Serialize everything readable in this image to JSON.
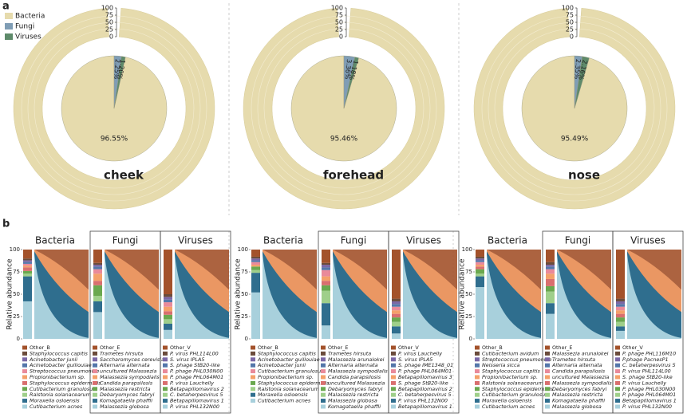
{
  "figure": {
    "panel_labels": [
      "a",
      "b"
    ]
  },
  "chart_data": [
    {
      "type": "pie",
      "title": "cheek",
      "categories": [
        "Bacteria",
        "Fungi",
        "Viruses"
      ],
      "colors": [
        "#e6dbad",
        "#7f9db5",
        "#5e8a6a"
      ],
      "values": [
        96.55,
        2.25,
        1.2
      ],
      "value_labels": [
        "96.55%",
        "2.25%",
        "1.20%"
      ],
      "rlim": [
        0,
        100
      ],
      "rticks": [
        0,
        25,
        50,
        75,
        100
      ],
      "legend": "upper left"
    },
    {
      "type": "pie",
      "title": "forehead",
      "categories": [
        "Bacteria",
        "Fungi",
        "Viruses"
      ],
      "colors": [
        "#e6dbad",
        "#7f9db5",
        "#5e8a6a"
      ],
      "values": [
        95.46,
        3.36,
        1.18
      ],
      "value_labels": [
        "95.46%",
        "3.36%",
        "1.18%"
      ],
      "rlim": [
        0,
        100
      ],
      "rticks": [
        0,
        25,
        50,
        75,
        100
      ]
    },
    {
      "type": "pie",
      "title": "nose",
      "categories": [
        "Bacteria",
        "Fungi",
        "Viruses"
      ],
      "colors": [
        "#e6dbad",
        "#7f9db5",
        "#5e8a6a"
      ],
      "values": [
        95.49,
        2.35,
        2.16
      ],
      "value_labels": [
        "95.49%",
        "2.35%",
        "2.16%"
      ],
      "rlim": [
        0,
        100
      ],
      "rticks": [
        0,
        25,
        50,
        75,
        100
      ]
    },
    {
      "type": "stacked_area",
      "title": "Bacteria",
      "ylabel": "Relative abundance",
      "ylim": [
        0,
        100
      ],
      "yticks": [
        0,
        25,
        50,
        75,
        100
      ],
      "series": [
        {
          "name": "Other_B",
          "color": "#a3522b",
          "values": [
            10
          ]
        },
        {
          "name": "Staphylococcus capitis",
          "color": "#6b4c3b",
          "values": [
            2
          ]
        },
        {
          "name": "Acinetobacter junii",
          "color": "#7b68a6",
          "values": [
            2
          ]
        },
        {
          "name": "Acinetobacter guillouiae",
          "color": "#5577aa",
          "values": [
            2
          ]
        },
        {
          "name": "Streptococcus pneumoniae",
          "color": "#e98a9a",
          "values": [
            2
          ]
        },
        {
          "name": "Propionibacterium sp.",
          "color": "#f4a06a",
          "values": [
            2
          ]
        },
        {
          "name": "Staphylococcus epidermidis",
          "color": "#d96f6f",
          "values": [
            4
          ]
        },
        {
          "name": "Cutibacterium granulosum",
          "color": "#6aa84f",
          "values": [
            3
          ]
        },
        {
          "name": "Ralstonia solanacearum",
          "color": "#9fcf8a",
          "values": [
            3
          ]
        },
        {
          "name": "Moraxella osloensis",
          "color": "#2f6e8e",
          "values": [
            28
          ]
        },
        {
          "name": "Cutibacterium acnes",
          "color": "#a8d0dc",
          "values": [
            42
          ]
        }
      ]
    },
    {
      "type": "stacked_area",
      "title": "Fungi",
      "series": [
        {
          "name": "Other_E",
          "color": "#a3522b",
          "values": [
            15
          ]
        },
        {
          "name": "Trametes hirsuta",
          "color": "#6b4c3b",
          "values": [
            2
          ]
        },
        {
          "name": "Saccharomyces cerevisiae",
          "color": "#7b68a6",
          "values": [
            2
          ]
        },
        {
          "name": "Alternaria alternata",
          "color": "#5577aa",
          "values": [
            3
          ]
        },
        {
          "name": "uncultured Malassezia",
          "color": "#e98a9a",
          "values": [
            5
          ]
        },
        {
          "name": "Malassezia sympodialis",
          "color": "#f4a06a",
          "values": [
            8
          ]
        },
        {
          "name": "Candida parapsilosis",
          "color": "#d96f6f",
          "values": [
            5
          ]
        },
        {
          "name": "Malassezia restricta",
          "color": "#6aa84f",
          "values": [
            12
          ]
        },
        {
          "name": "Debaryomyces fabryi",
          "color": "#9fcf8a",
          "values": [
            6
          ]
        },
        {
          "name": "Komagataella phaffii",
          "color": "#2f6e8e",
          "values": [
            12
          ]
        },
        {
          "name": "Malassezia globosa",
          "color": "#a8d0dc",
          "values": [
            30
          ]
        }
      ]
    },
    {
      "type": "stacked_area",
      "title": "Viruses",
      "series": [
        {
          "name": "Other_V",
          "color": "#a3522b",
          "values": [
            50
          ]
        },
        {
          "name": "P. virus PHL114L00",
          "color": "#6b4c3b",
          "values": [
            3
          ]
        },
        {
          "name": "S. virus IPLA5",
          "color": "#7b68a6",
          "values": [
            3
          ]
        },
        {
          "name": "S. phage StB20-like",
          "color": "#5577aa",
          "values": [
            3
          ]
        },
        {
          "name": "P. phage PHL030N00",
          "color": "#e98a9a",
          "values": [
            5
          ]
        },
        {
          "name": "P. phage PHL064M01",
          "color": "#f4a06a",
          "values": [
            5
          ]
        },
        {
          "name": "P. virus Lauchelly",
          "color": "#d96f6f",
          "values": [
            4
          ]
        },
        {
          "name": "Betapapillomavirus 2",
          "color": "#6aa84f",
          "values": [
            5
          ]
        },
        {
          "name": "C. betaherpesvirus 5",
          "color": "#9fcf8a",
          "values": [
            5
          ]
        },
        {
          "name": "Betapapillomavirus 1",
          "color": "#2f6e8e",
          "values": [
            7
          ]
        },
        {
          "name": "P. virus PHL132N00",
          "color": "#a8d0dc",
          "values": [
            10
          ]
        }
      ]
    },
    {
      "type": "stacked_area",
      "title": "Bacteria",
      "ylabel": "Relative abundance",
      "ylim": [
        0,
        100
      ],
      "yticks": [
        0,
        25,
        50,
        75,
        100
      ],
      "series": [
        {
          "name": "Other_B",
          "color": "#a3522b",
          "values": [
            8
          ]
        },
        {
          "name": "Staphylococcus capitis",
          "color": "#6b4c3b",
          "values": [
            2
          ]
        },
        {
          "name": "Acinetobacter guillouiae",
          "color": "#7b68a6",
          "values": [
            2
          ]
        },
        {
          "name": "Acinetobacter junii",
          "color": "#5577aa",
          "values": [
            2
          ]
        },
        {
          "name": "Cutibacterium granulosum",
          "color": "#e98a9a",
          "values": [
            3
          ]
        },
        {
          "name": "Propionibacterium sp.",
          "color": "#f4a06a",
          "values": [
            2
          ]
        },
        {
          "name": "Staphylococcus epidermidis",
          "color": "#6aa84f",
          "values": [
            4
          ]
        },
        {
          "name": "Ralstonia solanacearum",
          "color": "#9fcf8a",
          "values": [
            3
          ]
        },
        {
          "name": "Moraxella osloensis",
          "color": "#2f6e8e",
          "values": [
            22
          ]
        },
        {
          "name": "Cutibacterium acnes",
          "color": "#a8d0dc",
          "values": [
            52
          ]
        }
      ]
    },
    {
      "type": "stacked_area",
      "title": "Fungi",
      "series": [
        {
          "name": "Other_E",
          "color": "#a3522b",
          "values": [
            15
          ]
        },
        {
          "name": "Trametes hirsuta",
          "color": "#6b4c3b",
          "values": [
            2
          ]
        },
        {
          "name": "Malassezia arunalokei",
          "color": "#7b68a6",
          "values": [
            3
          ]
        },
        {
          "name": "Alternaria alternata",
          "color": "#5577aa",
          "values": [
            3
          ]
        },
        {
          "name": "Malassezia sympodialis",
          "color": "#e98a9a",
          "values": [
            7
          ]
        },
        {
          "name": "Candida parapsilosis",
          "color": "#f4a06a",
          "values": [
            5
          ]
        },
        {
          "name": "uncultured Malassezia",
          "color": "#d96f6f",
          "values": [
            5
          ]
        },
        {
          "name": "Debaryomyces fabryi",
          "color": "#6aa84f",
          "values": [
            6
          ]
        },
        {
          "name": "Malassezia restricta",
          "color": "#9fcf8a",
          "values": [
            14
          ]
        },
        {
          "name": "Malassezia globosa",
          "color": "#2f6e8e",
          "values": [
            25
          ]
        },
        {
          "name": "Komagataella phaffii",
          "color": "#a8d0dc",
          "values": [
            15
          ]
        }
      ]
    },
    {
      "type": "stacked_area",
      "title": "Viruses",
      "series": [
        {
          "name": "Other_V",
          "color": "#a3522b",
          "values": [
            55
          ]
        },
        {
          "name": "P. virus Lauchelly",
          "color": "#6b4c3b",
          "values": [
            3
          ]
        },
        {
          "name": "S. virus IPLA5",
          "color": "#7b68a6",
          "values": [
            3
          ]
        },
        {
          "name": "S. phage IME1348_01",
          "color": "#5577aa",
          "values": [
            3
          ]
        },
        {
          "name": "P. phage PHL064M01",
          "color": "#e98a9a",
          "values": [
            4
          ]
        },
        {
          "name": "Betapapillomavirus 3",
          "color": "#f4a06a",
          "values": [
            4
          ]
        },
        {
          "name": "S. phage StB20-like",
          "color": "#d96f6f",
          "values": [
            4
          ]
        },
        {
          "name": "Betapapillomavirus 2",
          "color": "#6aa84f",
          "values": [
            5
          ]
        },
        {
          "name": "C. betaherpesvirus 5",
          "color": "#9fcf8a",
          "values": [
            5
          ]
        },
        {
          "name": "P. virus PHL132N00",
          "color": "#2f6e8e",
          "values": [
            8
          ]
        },
        {
          "name": "Betapapillomavirus 1",
          "color": "#a8d0dc",
          "values": [
            6
          ]
        }
      ]
    },
    {
      "type": "stacked_area",
      "title": "Bacteria",
      "ylabel": "Relative abundance",
      "ylim": [
        0,
        100
      ],
      "yticks": [
        0,
        25,
        50,
        75,
        100
      ],
      "series": [
        {
          "name": "Other_B",
          "color": "#a3522b",
          "values": [
            8
          ]
        },
        {
          "name": "Cutibacterium avidum",
          "color": "#6b4c3b",
          "values": [
            2
          ]
        },
        {
          "name": "Streptococcus pneumoniae",
          "color": "#7b68a6",
          "values": [
            2
          ]
        },
        {
          "name": "Neisseria sicca",
          "color": "#5577aa",
          "values": [
            2
          ]
        },
        {
          "name": "Staphylococcus capitis",
          "color": "#e98a9a",
          "values": [
            3
          ]
        },
        {
          "name": "Propionibacterium sp.",
          "color": "#f4a06a",
          "values": [
            2
          ]
        },
        {
          "name": "Ralstonia solanacearum",
          "color": "#d96f6f",
          "values": [
            3
          ]
        },
        {
          "name": "Staphylococcus epidermidis",
          "color": "#6aa84f",
          "values": [
            5
          ]
        },
        {
          "name": "Cutibacterium granulosum",
          "color": "#9fcf8a",
          "values": [
            3
          ]
        },
        {
          "name": "Moraxella osloensis",
          "color": "#2f6e8e",
          "values": [
            12
          ]
        },
        {
          "name": "Cutibacterium acnes",
          "color": "#a8d0dc",
          "values": [
            58
          ]
        }
      ]
    },
    {
      "type": "stacked_area",
      "title": "Fungi",
      "series": [
        {
          "name": "Other_E",
          "color": "#a3522b",
          "values": [
            14
          ]
        },
        {
          "name": "Malassezia arunalokei",
          "color": "#6b4c3b",
          "values": [
            3
          ]
        },
        {
          "name": "Trametes hirsuta",
          "color": "#7b68a6",
          "values": [
            2
          ]
        },
        {
          "name": "Alternaria alternata",
          "color": "#5577aa",
          "values": [
            3
          ]
        },
        {
          "name": "Candida parapsilosis",
          "color": "#e98a9a",
          "values": [
            5
          ]
        },
        {
          "name": "uncultured Malassezia",
          "color": "#f4a06a",
          "values": [
            6
          ]
        },
        {
          "name": "Malassezia sympodialis",
          "color": "#d96f6f",
          "values": [
            8
          ]
        },
        {
          "name": "Debaryomyces fabryi",
          "color": "#6aa84f",
          "values": [
            6
          ]
        },
        {
          "name": "Malassezia restricta",
          "color": "#9fcf8a",
          "values": [
            13
          ]
        },
        {
          "name": "Komagataella phaffii",
          "color": "#2f6e8e",
          "values": [
            12
          ]
        },
        {
          "name": "Malassezia globosa",
          "color": "#a8d0dc",
          "values": [
            28
          ]
        }
      ]
    },
    {
      "type": "stacked_area",
      "title": "Viruses",
      "series": [
        {
          "name": "Other_V",
          "color": "#a3522b",
          "values": [
            55
          ]
        },
        {
          "name": "P. phage PHL116M10",
          "color": "#6b4c3b",
          "values": [
            3
          ]
        },
        {
          "name": "P.phage PacnesP1",
          "color": "#7b68a6",
          "values": [
            3
          ]
        },
        {
          "name": "C. betaherpesvirus 5",
          "color": "#5577aa",
          "values": [
            3
          ]
        },
        {
          "name": "P. virus PHL114L00",
          "color": "#e98a9a",
          "values": [
            4
          ]
        },
        {
          "name": "S. phage StB20-like",
          "color": "#f4a06a",
          "values": [
            4
          ]
        },
        {
          "name": "P. virus Lauchelly",
          "color": "#d96f6f",
          "values": [
            4
          ]
        },
        {
          "name": "P. phage PHL030N00",
          "color": "#6aa84f",
          "values": [
            5
          ]
        },
        {
          "name": "P. phage PHL064M01",
          "color": "#9fcf8a",
          "values": [
            5
          ]
        },
        {
          "name": "Betapapillomavirus 1",
          "color": "#2f6e8e",
          "values": [
            5
          ]
        },
        {
          "name": "P. virus PHL132N00",
          "color": "#a8d0dc",
          "values": [
            9
          ]
        }
      ]
    }
  ]
}
